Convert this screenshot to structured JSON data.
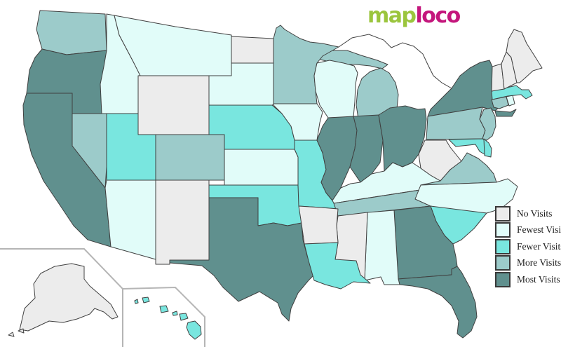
{
  "logo": {
    "part1": "map",
    "part2": "loco",
    "part1_color": "#9bc53d",
    "part2_color": "#c4167c"
  },
  "legend": {
    "items": [
      {
        "label": "No Visits",
        "level": "no"
      },
      {
        "label": "Fewest Visits",
        "level": "fewest"
      },
      {
        "label": "Fewer Visits",
        "level": "fewer"
      },
      {
        "label": "More Visits",
        "level": "more"
      },
      {
        "label": "Most Visits",
        "level": "most"
      }
    ]
  },
  "colors": {
    "no": "#ececec",
    "fewest": "#e1fcf9",
    "fewer": "#79e6df",
    "more": "#9ccbca",
    "most": "#60908e",
    "state_border": "#404040",
    "inset_border": "#b5b5b5",
    "background": "#ffffff"
  },
  "map": {
    "type": "choropleth",
    "region": "United States visit frequency",
    "states": [
      {
        "id": "CA",
        "name": "California",
        "level": "most"
      },
      {
        "id": "OR",
        "name": "Oregon",
        "level": "most"
      },
      {
        "id": "WA",
        "name": "Washington",
        "level": "more"
      },
      {
        "id": "ID",
        "name": "Idaho",
        "level": "fewest"
      },
      {
        "id": "NV",
        "name": "Nevada",
        "level": "more"
      },
      {
        "id": "UT",
        "name": "Utah",
        "level": "fewer"
      },
      {
        "id": "AZ",
        "name": "Arizona",
        "level": "fewest"
      },
      {
        "id": "MT",
        "name": "Montana",
        "level": "fewest"
      },
      {
        "id": "WY",
        "name": "Wyoming",
        "level": "no"
      },
      {
        "id": "CO",
        "name": "Colorado",
        "level": "more"
      },
      {
        "id": "NM",
        "name": "New Mexico",
        "level": "no"
      },
      {
        "id": "ND",
        "name": "North Dakota",
        "level": "no"
      },
      {
        "id": "SD",
        "name": "South Dakota",
        "level": "fewest"
      },
      {
        "id": "NE",
        "name": "Nebraska",
        "level": "fewer"
      },
      {
        "id": "KS",
        "name": "Kansas",
        "level": "fewest"
      },
      {
        "id": "OK",
        "name": "Oklahoma",
        "level": "fewer"
      },
      {
        "id": "TX",
        "name": "Texas",
        "level": "most"
      },
      {
        "id": "MN",
        "name": "Minnesota",
        "level": "more"
      },
      {
        "id": "IA",
        "name": "Iowa",
        "level": "fewest"
      },
      {
        "id": "MO",
        "name": "Missouri",
        "level": "fewer"
      },
      {
        "id": "AR",
        "name": "Arkansas",
        "level": "no"
      },
      {
        "id": "LA",
        "name": "Louisiana",
        "level": "fewer"
      },
      {
        "id": "WI",
        "name": "Wisconsin",
        "level": "fewest"
      },
      {
        "id": "MI",
        "name": "Michigan",
        "level": "more"
      },
      {
        "id": "IL",
        "name": "Illinois",
        "level": "most"
      },
      {
        "id": "IN",
        "name": "Indiana",
        "level": "most"
      },
      {
        "id": "OH",
        "name": "Ohio",
        "level": "most"
      },
      {
        "id": "KY",
        "name": "Kentucky",
        "level": "fewest"
      },
      {
        "id": "TN",
        "name": "Tennessee",
        "level": "more"
      },
      {
        "id": "MS",
        "name": "Mississippi",
        "level": "no"
      },
      {
        "id": "AL",
        "name": "Alabama",
        "level": "fewest"
      },
      {
        "id": "GA",
        "name": "Georgia",
        "level": "most"
      },
      {
        "id": "FL",
        "name": "Florida",
        "level": "most"
      },
      {
        "id": "SC",
        "name": "South Carolina",
        "level": "fewer"
      },
      {
        "id": "NC",
        "name": "North Carolina",
        "level": "fewest"
      },
      {
        "id": "VA",
        "name": "Virginia",
        "level": "more"
      },
      {
        "id": "WV",
        "name": "West Virginia",
        "level": "no"
      },
      {
        "id": "MD",
        "name": "Maryland",
        "level": "fewer"
      },
      {
        "id": "DE",
        "name": "Delaware",
        "level": "fewer"
      },
      {
        "id": "PA",
        "name": "Pennsylvania",
        "level": "more"
      },
      {
        "id": "NJ",
        "name": "New Jersey",
        "level": "more"
      },
      {
        "id": "NY",
        "name": "New York",
        "level": "most"
      },
      {
        "id": "CT",
        "name": "Connecticut",
        "level": "more"
      },
      {
        "id": "RI",
        "name": "Rhode Island",
        "level": "fewest"
      },
      {
        "id": "MA",
        "name": "Massachusetts",
        "level": "fewer"
      },
      {
        "id": "VT",
        "name": "Vermont",
        "level": "no"
      },
      {
        "id": "NH",
        "name": "New Hampshire",
        "level": "no"
      },
      {
        "id": "ME",
        "name": "Maine",
        "level": "no"
      },
      {
        "id": "AK",
        "name": "Alaska",
        "level": "no"
      },
      {
        "id": "HI",
        "name": "Hawaii",
        "level": "fewer"
      }
    ]
  }
}
